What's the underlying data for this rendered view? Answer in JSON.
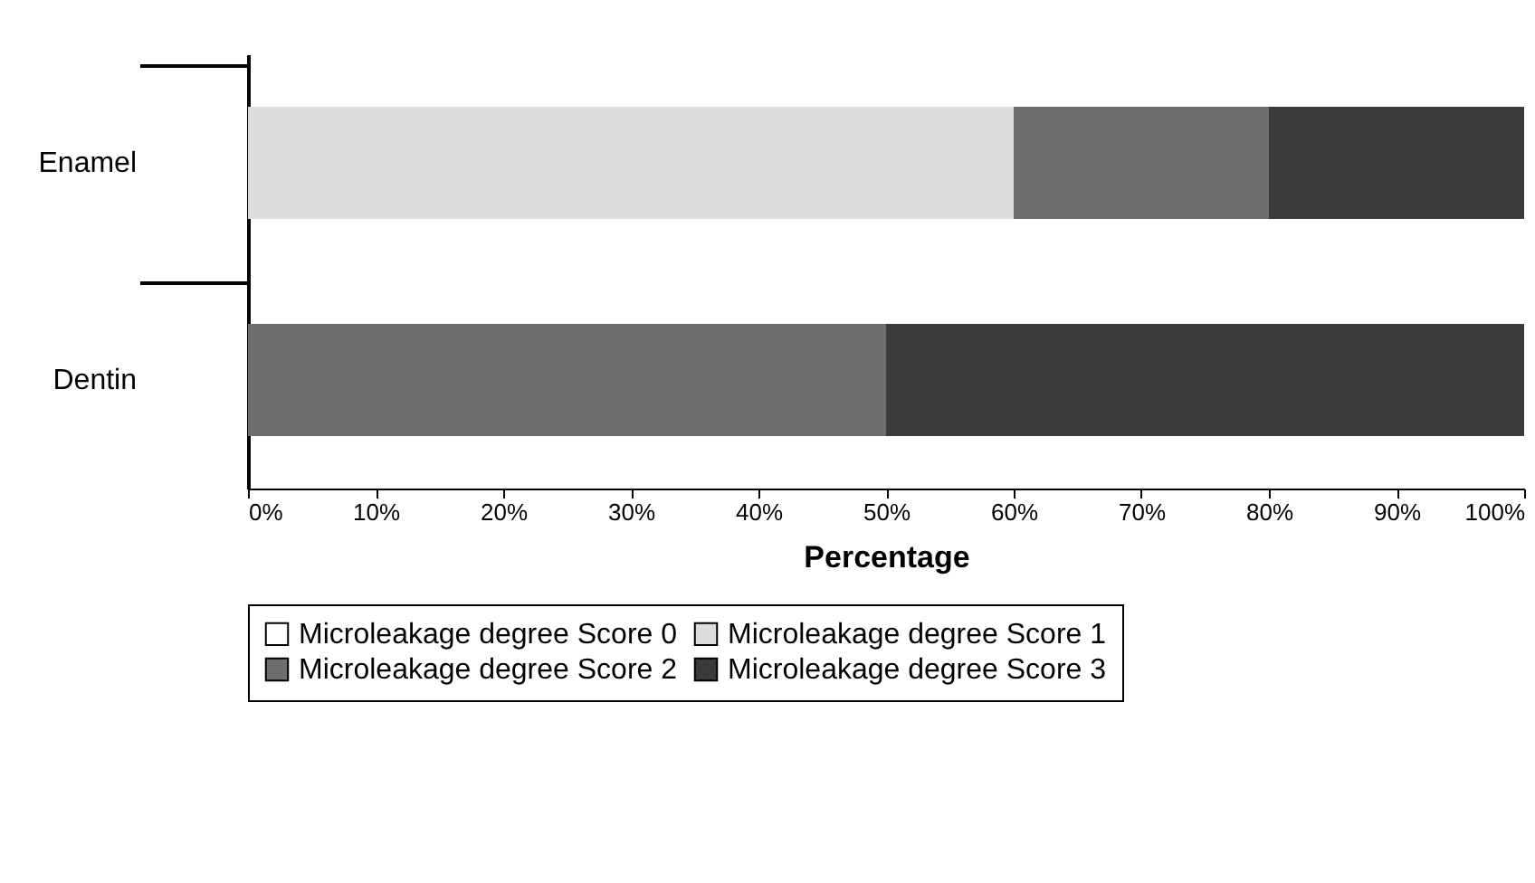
{
  "chart_data": {
    "type": "bar",
    "orientation": "horizontal",
    "stacked": true,
    "xlabel": "Percentage",
    "categories": [
      "Enamel",
      "Dentin"
    ],
    "series": [
      {
        "name": "Microleakage degree Score 0",
        "color": "#ffffff",
        "values": [
          0,
          0
        ]
      },
      {
        "name": "Microleakage degree Score 1",
        "color": "#dcdcdc",
        "values": [
          60,
          0
        ]
      },
      {
        "name": "Microleakage degree Score 2",
        "color": "#6e6e6e",
        "values": [
          20,
          50
        ]
      },
      {
        "name": "Microleakage degree Score 3",
        "color": "#3a3a3a",
        "values": [
          20,
          50
        ]
      }
    ],
    "xlim": [
      0,
      100
    ],
    "xticks": [
      {
        "value": 0,
        "label": "0%"
      },
      {
        "value": 10,
        "label": "10%"
      },
      {
        "value": 20,
        "label": "20%"
      },
      {
        "value": 30,
        "label": "30%"
      },
      {
        "value": 40,
        "label": "40%"
      },
      {
        "value": 50,
        "label": "50%"
      },
      {
        "value": 60,
        "label": "60%"
      },
      {
        "value": 70,
        "label": "70%"
      },
      {
        "value": 80,
        "label": "80%"
      },
      {
        "value": 90,
        "label": "90%"
      },
      {
        "value": 100,
        "label": "100%"
      }
    ],
    "legend": "bottom",
    "grid": false
  }
}
